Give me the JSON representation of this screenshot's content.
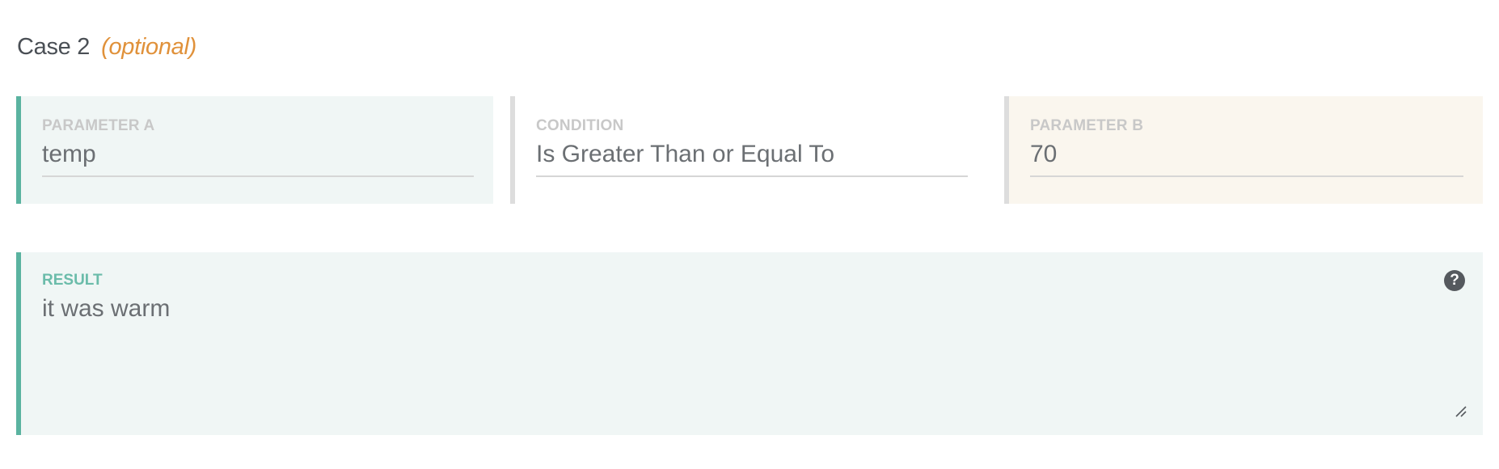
{
  "case": {
    "title": "Case 2",
    "optional_label": "(optional)"
  },
  "parameter_a": {
    "label": "PARAMETER A",
    "value": "temp"
  },
  "condition": {
    "label": "CONDITION",
    "value": "Is Greater Than or Equal To"
  },
  "parameter_b": {
    "label": "PARAMETER B",
    "value": "70"
  },
  "result": {
    "label": "RESULT",
    "value": "it was warm",
    "help_icon_glyph": "?"
  },
  "icons": {
    "help": "question-circle-icon",
    "resize": "resize-handle-icon"
  },
  "colors": {
    "accent_teal": "#5ab3a0",
    "optional_orange": "#e0913a",
    "param_a_bg": "#f0f6f5",
    "param_b_bg": "#faf6ee",
    "result_label": "#6bbcaa"
  }
}
